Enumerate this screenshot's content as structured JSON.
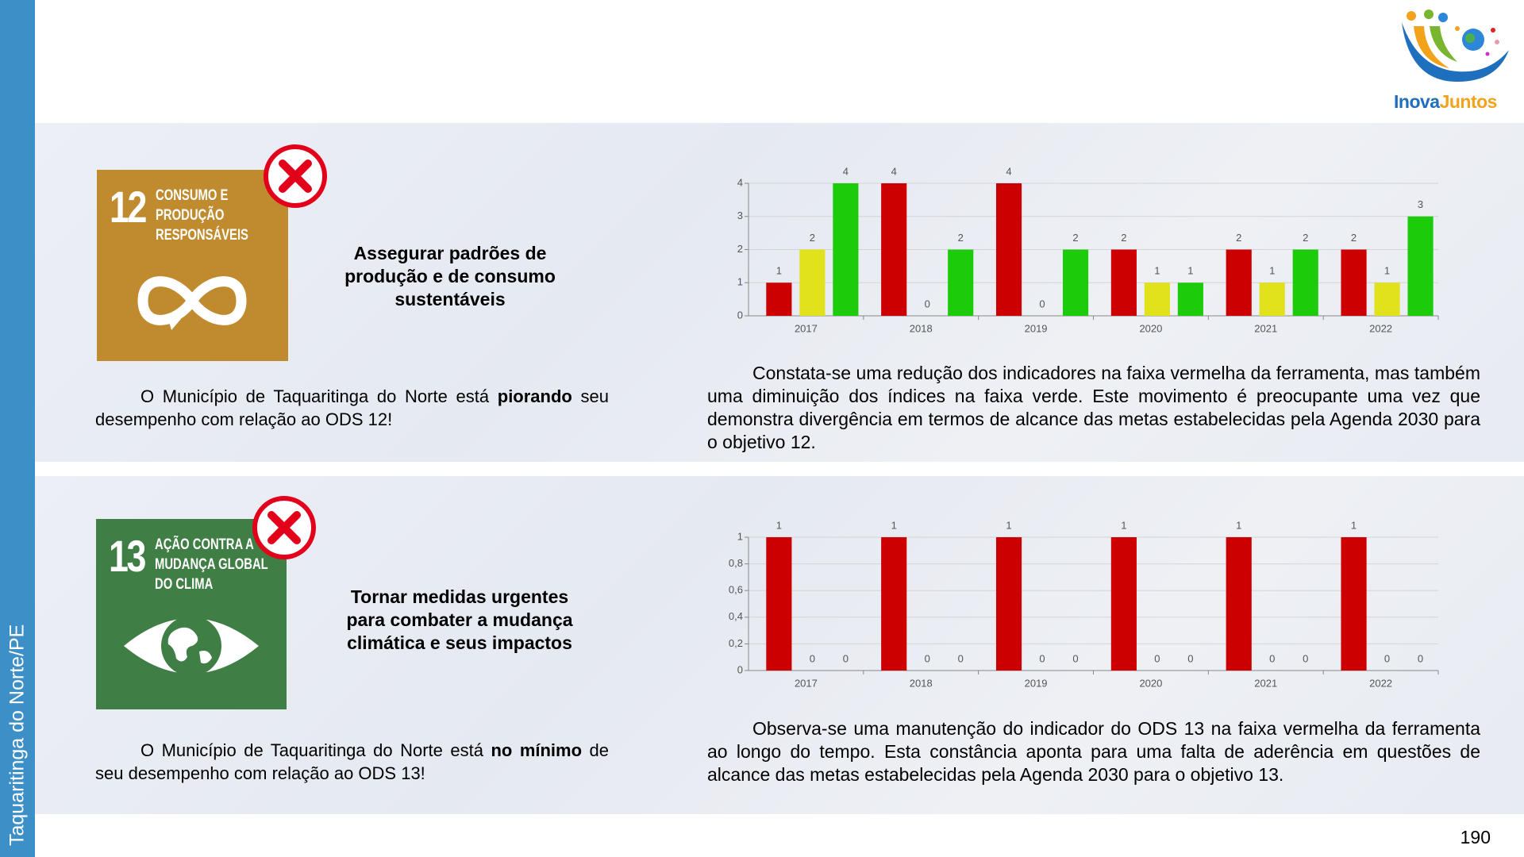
{
  "sidebar": "Taquaritinga do Norte/PE",
  "logo": {
    "part1": "Inova",
    "part2": "Juntos"
  },
  "page_number": "190",
  "sections": [
    {
      "goal": {
        "number": "12",
        "lines": [
          "CONSUMO E",
          "PRODUÇÃO",
          "RESPONSÁVEIS"
        ]
      },
      "heading": [
        "Assegurar padrões de",
        "produção e de consumo",
        "sustentáveis"
      ],
      "summary": {
        "lead": "O Município de Taquaritinga do Norte está ",
        "emphasis": "piorando",
        "tail": " seu desempenho com relação ao ODS 12!"
      },
      "description": "Constata-se uma redução dos indicadores na faixa vermelha da ferramenta, mas também uma diminuição dos índices na faixa verde. Este movimento é preocupante uma vez que demonstra divergência em termos de alcance das metas estabelecidas pela Agenda 2030 para o objetivo 12."
    },
    {
      "goal": {
        "number": "13",
        "lines": [
          "AÇÃO CONTRA A",
          "MUDANÇA GLOBAL",
          "DO CLIMA"
        ]
      },
      "heading": [
        "Tornar medidas urgentes",
        "para combater a mudança",
        "climática e seus impactos"
      ],
      "summary": {
        "lead": "O Município de Taquaritinga do Norte está ",
        "emphasis": "no mínimo",
        "tail": " de seu desempenho com relação ao ODS 13!"
      },
      "description": "Observa-se uma manutenção do indicador do ODS 13 na faixa vermelha da ferramenta ao longo do tempo. Esta constância aponta para uma falta de aderência em questões de alcance das metas estabelecidas pela Agenda 2030 para o objetivo 13."
    }
  ],
  "chart_data": [
    {
      "type": "bar",
      "categories": [
        "2017",
        "2018",
        "2019",
        "2020",
        "2021",
        "2022"
      ],
      "series": [
        {
          "color": "#cc0000",
          "values": [
            1,
            4,
            4,
            2,
            2,
            2
          ]
        },
        {
          "color": "#e2e21c",
          "values": [
            2,
            0,
            0,
            1,
            1,
            1
          ]
        },
        {
          "color": "#1ccc0a",
          "values": [
            4,
            2,
            2,
            1,
            2,
            3
          ]
        }
      ],
      "ylim": [
        0,
        4
      ],
      "yticks": [
        0,
        1,
        2,
        3,
        4
      ],
      "grid": true
    },
    {
      "type": "bar",
      "categories": [
        "2017",
        "2018",
        "2019",
        "2020",
        "2021",
        "2022"
      ],
      "series": [
        {
          "color": "#cc0000",
          "values": [
            1,
            1,
            1,
            1,
            1,
            1
          ]
        },
        {
          "color": "#e2e21c",
          "values": [
            0,
            0,
            0,
            0,
            0,
            0
          ]
        },
        {
          "color": "#1ccc0a",
          "values": [
            0,
            0,
            0,
            0,
            0,
            0
          ]
        }
      ],
      "ylim": [
        0,
        1
      ],
      "yticks": [
        0,
        {
          "value": 0.2,
          "label": "0,2"
        },
        {
          "value": 0.4,
          "label": "0,4"
        },
        {
          "value": 0.6,
          "label": "0,6"
        },
        {
          "value": 0.8,
          "label": "0,8"
        },
        1
      ],
      "grid": true
    }
  ]
}
